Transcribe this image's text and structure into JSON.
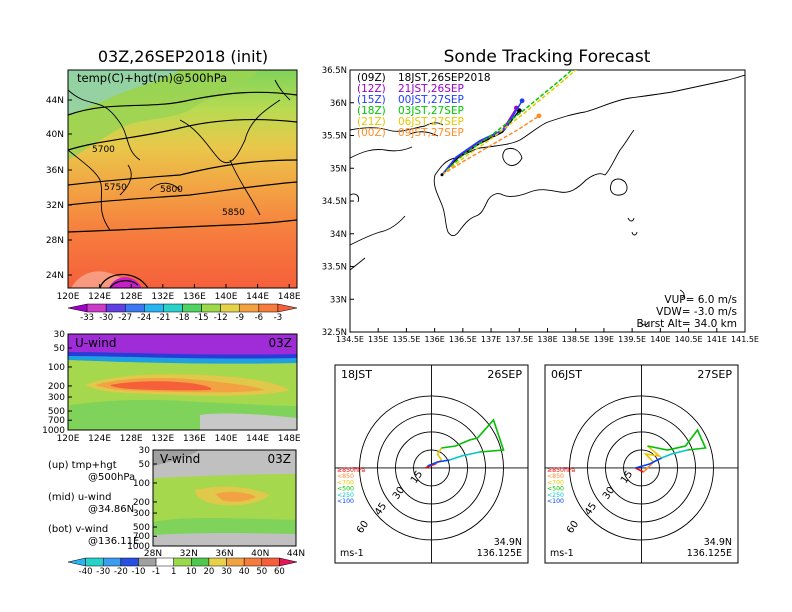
{
  "colors": {
    "black": "#000000",
    "land": "#e7a33b",
    "sea_warm": "#f56b3d",
    "sea_mid": "#e9c84a",
    "sea_cool": "#7fd35a",
    "track_09": "#000000",
    "track_12": "#a000c8",
    "track_15": "#1e3cff",
    "track_18": "#00c800",
    "track_21": "#e6c800",
    "track_00": "#ff8c28",
    "hodo_red": "#ff0000",
    "hodo_green": "#00c000",
    "hodo_cyan": "#00c8c8",
    "hodo_blue": "#0040ff"
  },
  "left_top": {
    "title": "03Z,26SEP2018 (init)",
    "map_label": "temp(C)+hgt(m)@500hPa",
    "contour_labels": [
      "5700",
      "5750",
      "5800",
      "5850"
    ],
    "lat_ticks": [
      "44N",
      "40N",
      "36N",
      "32N",
      "28N",
      "24N"
    ],
    "lon_ticks": [
      "120E",
      "124E",
      "128E",
      "132E",
      "136E",
      "140E",
      "144E",
      "148E"
    ],
    "colorbar_ticks": [
      "-33",
      "-30",
      "-27",
      "-24",
      "-21",
      "-18",
      "-15",
      "-12",
      "-9",
      "-6",
      "-3"
    ]
  },
  "u_panel": {
    "label": "U-wind",
    "time": "03Z",
    "p_ticks": [
      "30",
      "50",
      "100",
      "200",
      "300",
      "500",
      "700",
      "1000"
    ],
    "lon_ticks": [
      "120E",
      "124E",
      "128E",
      "132E",
      "136E",
      "140E",
      "144E",
      "148E"
    ]
  },
  "v_panel": {
    "label": "V-wind",
    "time": "03Z",
    "p_ticks": [
      "30",
      "50",
      "100",
      "200",
      "300",
      "500",
      "700",
      "1000"
    ],
    "lat_ticks": [
      "28N",
      "32N",
      "36N",
      "40N",
      "44N"
    ],
    "colorbar_ticks": [
      "-40",
      "-30",
      "-20",
      "-10",
      "-1",
      "1",
      "10",
      "20",
      "30",
      "40",
      "50",
      "60"
    ]
  },
  "legend_notes": [
    {
      "tag": "(up)",
      "line1": "tmp+hgt",
      "line2": "@500hPa"
    },
    {
      "tag": "(mid)",
      "line1": "u-wind",
      "line2": "@34.86N"
    },
    {
      "tag": "(bot)",
      "line1": "v-wind",
      "line2": "@136.11E"
    }
  ],
  "tracking": {
    "title": "Sonde Tracking Forecast",
    "runs": [
      {
        "utc": "(09Z)",
        "jst": "18JST,26SEP2018",
        "color": "#000000"
      },
      {
        "utc": "(12Z)",
        "jst": "21JST,26SEP",
        "color": "#a000c8"
      },
      {
        "utc": "(15Z)",
        "jst": "00JST,27SEP",
        "color": "#1e3cff"
      },
      {
        "utc": "(18Z)",
        "jst": "03JST,27SEP",
        "color": "#00c800"
      },
      {
        "utc": "(21Z)",
        "jst": "06JST,27SEP",
        "color": "#e6c800"
      },
      {
        "utc": "(00Z)",
        "jst": "09JST,27SEP",
        "color": "#ff8c28"
      }
    ],
    "lat_ticks": [
      "36.5N",
      "36N",
      "35.5N",
      "35N",
      "34.5N",
      "34N",
      "33.5N",
      "33N",
      "32.5N"
    ],
    "lon_ticks": [
      "134.5E",
      "135E",
      "135.5E",
      "136E",
      "136.5E",
      "137E",
      "137.5E",
      "138E",
      "138.5E",
      "139E",
      "139.5E",
      "140E",
      "140.5E",
      "141E",
      "141.5E"
    ],
    "vup": "VUP= 6.0 m/s",
    "vdw": "VDW= -3.0 m/s",
    "burst": "Burst Alt= 34.0 km"
  },
  "hodographs": [
    {
      "time": "18JST",
      "date": "26SEP",
      "lat": "34.9N",
      "lon": "136.125E",
      "unit": "ms-1",
      "ring_labels": [
        "15",
        "30",
        "45",
        "60"
      ],
      "levels": [
        "≥850hPa",
        "<850",
        "<700",
        "<500",
        "<250",
        "<100"
      ]
    },
    {
      "time": "06JST",
      "date": "27SEP",
      "lat": "34.9N",
      "lon": "136.125E",
      "unit": "ms-1",
      "ring_labels": [
        "15",
        "30",
        "45",
        "60"
      ],
      "levels": [
        "≥850hPa",
        "<850",
        "<700",
        "<500",
        "<250",
        "<100"
      ]
    }
  ],
  "chart_data": [
    {
      "type": "heatmap",
      "title": "03Z,26SEP2018 (init)",
      "subtitle": "temp(C)+hgt(m)@500hPa",
      "x_ticks": [
        "120E",
        "124E",
        "128E",
        "132E",
        "136E",
        "140E",
        "144E",
        "148E"
      ],
      "y_ticks": [
        "24N",
        "28N",
        "32N",
        "36N",
        "40N",
        "44N"
      ],
      "xlim": [
        120,
        149
      ],
      "ylim": [
        22,
        47
      ],
      "color_levels": [
        -33,
        -30,
        -27,
        -24,
        -21,
        -18,
        -15,
        -12,
        -9,
        -6,
        -3
      ],
      "contour_levels": [
        5700,
        5750,
        5800,
        5850
      ]
    },
    {
      "type": "heatmap",
      "title": "U-wind",
      "x_ticks": [
        "120E",
        "124E",
        "128E",
        "132E",
        "136E",
        "140E",
        "144E",
        "148E"
      ],
      "y_ticks": [
        "30",
        "50",
        "100",
        "200",
        "300",
        "500",
        "700",
        "1000"
      ]
    },
    {
      "type": "heatmap",
      "title": "V-wind",
      "x_ticks": [
        "28N",
        "32N",
        "36N",
        "40N",
        "44N"
      ],
      "y_ticks": [
        "30",
        "50",
        "100",
        "200",
        "300",
        "500",
        "700",
        "1000"
      ],
      "color_levels": [
        -40,
        -30,
        -20,
        -10,
        -1,
        1,
        10,
        20,
        30,
        40,
        50,
        60
      ]
    },
    {
      "type": "line",
      "title": "Sonde Tracking Forecast",
      "xlim": [
        134.5,
        141.5
      ],
      "ylim": [
        32.5,
        36.5
      ],
      "series": [
        {
          "name": "(09Z) 18JST,26SEP2018",
          "x": [
            136.13,
            136.4,
            136.8,
            137.2,
            137.5
          ],
          "y": [
            34.9,
            35.15,
            35.38,
            35.55,
            35.88
          ]
        },
        {
          "name": "(12Z) 21JST,26SEP",
          "x": [
            136.13,
            136.38,
            136.78,
            137.2,
            137.45
          ],
          "y": [
            34.9,
            35.16,
            35.4,
            35.58,
            35.92
          ]
        },
        {
          "name": "(15Z) 00JST,27SEP",
          "x": [
            136.13,
            136.38,
            136.8,
            137.25,
            137.55
          ],
          "y": [
            34.9,
            35.17,
            35.42,
            35.6,
            36.03
          ]
        },
        {
          "name": "(18Z) 03JST,27SEP",
          "x": [
            136.13,
            136.5,
            137.0,
            137.6,
            138.3,
            139.0
          ],
          "y": [
            34.9,
            35.2,
            35.5,
            35.9,
            36.4,
            36.95
          ]
        },
        {
          "name": "(21Z) 06JST,27SEP",
          "x": [
            136.13,
            136.5,
            137.0,
            137.6,
            138.3,
            139.1
          ],
          "y": [
            34.9,
            35.15,
            35.45,
            35.85,
            36.35,
            36.95
          ]
        },
        {
          "name": "(00Z) 09JST,27SEP",
          "x": [
            136.13,
            136.5,
            137.0,
            137.5,
            137.85
          ],
          "y": [
            34.9,
            35.1,
            35.35,
            35.6,
            35.8
          ]
        }
      ]
    }
  ]
}
